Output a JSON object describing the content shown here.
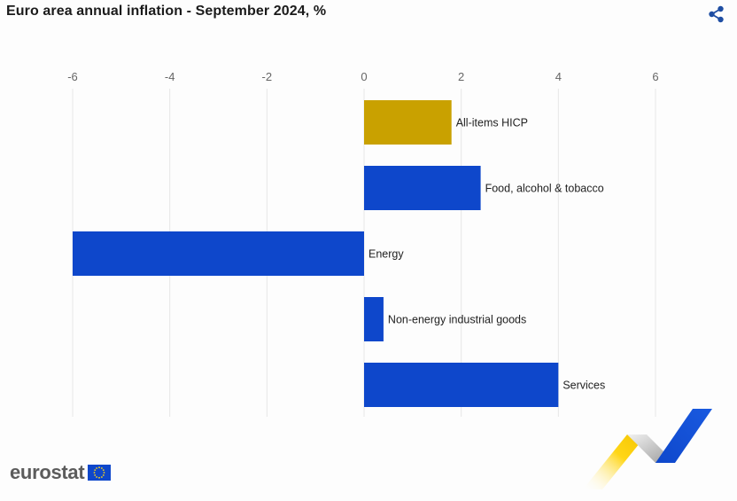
{
  "title": "Euro area annual inflation - September 2024, %",
  "share_icon": "share-icon",
  "brand": {
    "name": "eurostat",
    "flag_icon": "eu-flag-icon"
  },
  "colors": {
    "highlight": "#c9a100",
    "bar": "#0e47cb",
    "grid": "#e6e6e6",
    "tick_text": "#666666",
    "label_text": "#222222"
  },
  "chart_data": {
    "type": "bar",
    "orientation": "horizontal",
    "title": "Euro area annual inflation - September 2024, %",
    "xlabel": "",
    "ylabel": "",
    "xlim": [
      -6,
      6
    ],
    "x_ticks": [
      -6,
      -4,
      -2,
      0,
      2,
      4,
      6
    ],
    "grid": true,
    "legend": "none",
    "categories": [
      "All-items HICP",
      "Food, alcohol & tobacco",
      "Energy",
      "Non-energy industrial goods",
      "Services"
    ],
    "values": [
      1.8,
      2.4,
      -6.0,
      0.4,
      4.0
    ],
    "highlight_category": "All-items HICP"
  }
}
